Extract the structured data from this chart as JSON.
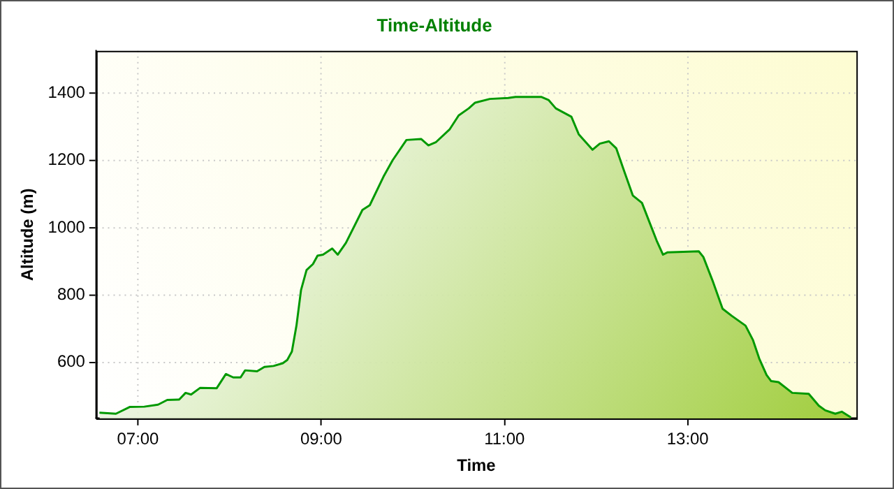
{
  "chart_data": {
    "type": "area",
    "title": "Time-Altitude",
    "xlabel": "Time",
    "ylabel": "Altitude (m)",
    "x": [
      6.58,
      6.76,
      6.91,
      7.07,
      7.22,
      7.32,
      7.45,
      7.52,
      7.58,
      7.68,
      7.86,
      7.96,
      8.04,
      8.12,
      8.17,
      8.3,
      8.38,
      8.48,
      8.58,
      8.63,
      8.68,
      8.73,
      8.78,
      8.84,
      8.91,
      8.96,
      9.02,
      9.12,
      9.18,
      9.27,
      9.45,
      9.53,
      9.68,
      9.78,
      9.93,
      10.09,
      10.17,
      10.25,
      10.4,
      10.5,
      10.61,
      10.68,
      10.84,
      11.04,
      11.12,
      11.4,
      11.48,
      11.56,
      11.73,
      11.81,
      11.96,
      12.04,
      12.14,
      12.22,
      12.3,
      12.4,
      12.5,
      12.58,
      12.66,
      12.73,
      12.78,
      13.12,
      13.17,
      13.27,
      13.38,
      13.48,
      13.63,
      13.71,
      13.78,
      13.86,
      13.91,
      13.99,
      14.14,
      14.32,
      14.43,
      14.5,
      14.61,
      14.68,
      14.78
    ],
    "series": [
      {
        "color": "#009900",
        "values": [
          450,
          447,
          467,
          468,
          474,
          488,
          489,
          509,
          504,
          524,
          523,
          565,
          555,
          555,
          576,
          573,
          586,
          589,
          597,
          607,
          632,
          709,
          815,
          874,
          892,
          917,
          920,
          938,
          920,
          955,
          1053,
          1067,
          1152,
          1201,
          1261,
          1264,
          1245,
          1254,
          1292,
          1334,
          1355,
          1372,
          1383,
          1386,
          1389,
          1389,
          1380,
          1355,
          1330,
          1278,
          1232,
          1250,
          1257,
          1236,
          1173,
          1096,
          1074,
          1018,
          962,
          920,
          927,
          930,
          913,
          843,
          759,
          738,
          709,
          667,
          611,
          562,
          544,
          541,
          509,
          506,
          471,
          457,
          447,
          453,
          436
        ]
      }
    ],
    "xlim": [
      6.545,
      14.84
    ],
    "ylim": [
      433,
      1526
    ],
    "xticks": [
      {
        "value": 7,
        "label": "07:00"
      },
      {
        "value": 9,
        "label": "09:00"
      },
      {
        "value": 11,
        "label": "11:00"
      },
      {
        "value": 13,
        "label": "13:00"
      }
    ],
    "yticks": [
      600,
      800,
      1000,
      1200,
      1400
    ],
    "grid": true,
    "legend": false,
    "marker": "none",
    "line_style": "solid"
  }
}
